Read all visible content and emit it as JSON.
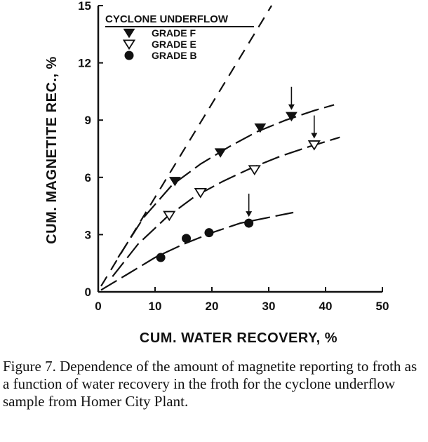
{
  "chart_data": {
    "type": "scatter",
    "xlabel": "CUM. WATER RECOVERY, %",
    "ylabel": "CUM. MAGNETITE REC., %",
    "xlim": [
      0,
      50
    ],
    "ylim": [
      0,
      15
    ],
    "x_ticks": [
      0,
      10,
      20,
      30,
      40,
      50
    ],
    "y_ticks": [
      0,
      3,
      6,
      9,
      12,
      15
    ],
    "grid": false,
    "legend_title": "CYCLONE UNDERFLOW",
    "legend_position": "top-left",
    "series": [
      {
        "name": "GRADE F",
        "marker": "filled-triangle-down",
        "x": [
          13.5,
          21.5,
          28.5,
          34
        ],
        "y": [
          5.8,
          7.3,
          8.6,
          9.2
        ],
        "fit_curve": {
          "x": [
            3.5,
            8,
            13,
            18,
            23,
            28,
            33,
            38,
            41.5
          ],
          "y": [
            1.8,
            3.9,
            5.6,
            6.7,
            7.6,
            8.4,
            9.0,
            9.5,
            9.8
          ]
        },
        "arrow_at": [
          34,
          9.2
        ]
      },
      {
        "name": "GRADE E",
        "marker": "open-triangle-down",
        "x": [
          12.5,
          18,
          27.5,
          38
        ],
        "y": [
          4.0,
          5.2,
          6.4,
          7.7
        ],
        "fit_curve": {
          "x": [
            2.5,
            7,
            12,
            17,
            22,
            27,
            32,
            37,
            42.5
          ],
          "y": [
            0.8,
            2.5,
            3.9,
            5.0,
            5.8,
            6.5,
            7.1,
            7.6,
            8.1
          ]
        },
        "arrow_at": [
          38,
          7.7
        ]
      },
      {
        "name": "GRADE B",
        "marker": "filled-circle",
        "x": [
          11,
          15.5,
          19.5,
          26.5
        ],
        "y": [
          1.8,
          2.8,
          3.1,
          3.6
        ],
        "fit_curve": {
          "x": [
            0.5,
            5,
            10,
            15,
            20,
            25,
            30,
            35
          ],
          "y": [
            0.1,
            0.9,
            1.8,
            2.5,
            3.1,
            3.6,
            3.9,
            4.2
          ]
        },
        "arrow_at": [
          26.5,
          3.6
        ]
      }
    ],
    "reference_line": {
      "style": "dashed",
      "x": [
        0.5,
        30.5
      ],
      "y": [
        0.3,
        15
      ]
    }
  },
  "caption": "Figure 7.  Dependence of the amount of magnetite reporting to froth as a function of water recovery in the froth for the cyclone underflow sample from Homer City Plant."
}
